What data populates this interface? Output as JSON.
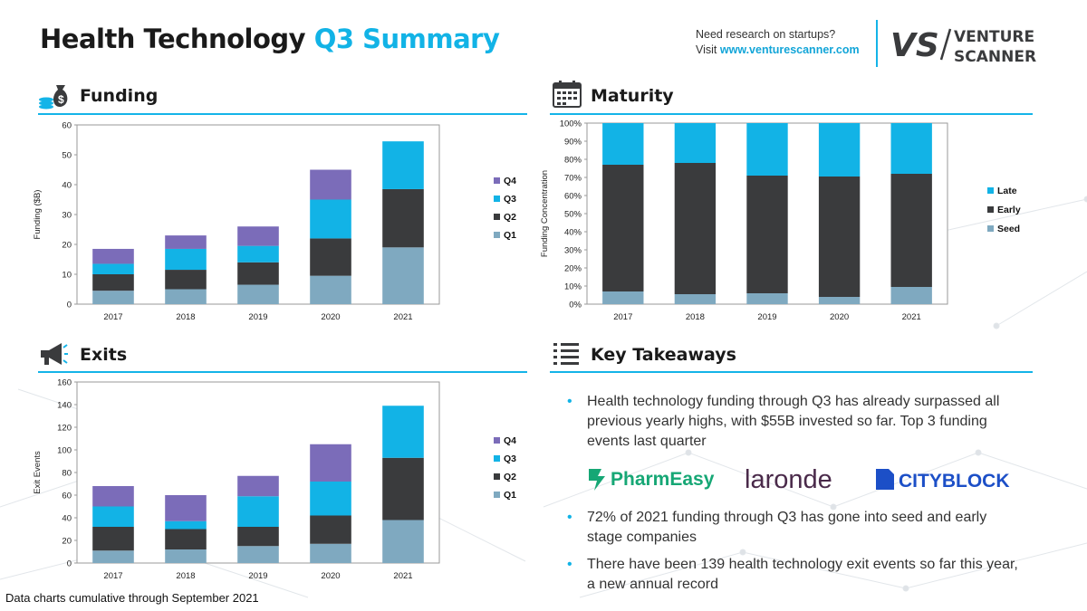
{
  "header": {
    "title_part1": "Health Technology",
    "title_part2": "Q3 Summary",
    "research_line1": "Need research on startups?",
    "research_visit": "Visit ",
    "research_url": "www.venturescanner.com",
    "logo_mark": "VS",
    "logo_word1": "VENTURE",
    "logo_word2": "SCANNER"
  },
  "sections": {
    "funding": "Funding",
    "maturity": "Maturity",
    "exits": "Exits",
    "takeaways": "Key Takeaways"
  },
  "takeaways": {
    "items": [
      "Health technology funding through Q3 has already surpassed all previous yearly highs, with $55B invested so far. Top 3 funding events last quarter",
      "72% of 2021 funding through Q3 has gone into seed and early stage companies",
      "There have been 139 health technology exit events so far this year, a new annual record"
    ],
    "logos": [
      "PharmEasy",
      "laronde",
      "CITYBLOCK"
    ]
  },
  "footer": "Data charts cumulative through September 2021",
  "colors": {
    "accent": "#14b4e8",
    "q1": "#7fa9c0",
    "q2": "#3a3b3d",
    "q3": "#12b3e6",
    "q4": "#7b6cb9",
    "seed": "#7fa9c0",
    "early": "#3a3b3d",
    "late": "#12b3e6"
  },
  "icons": [
    "money-bag-icon",
    "calendar-icon",
    "megaphone-icon",
    "list-icon"
  ],
  "chart_data": [
    {
      "id": "funding",
      "type": "bar",
      "stacked": true,
      "categories": [
        "2017",
        "2018",
        "2019",
        "2020",
        "2021"
      ],
      "series": [
        {
          "name": "Q1",
          "values": [
            4.5,
            5,
            6.5,
            9.5,
            19
          ]
        },
        {
          "name": "Q2",
          "values": [
            5.5,
            6.5,
            7.5,
            12.5,
            19.5
          ]
        },
        {
          "name": "Q3",
          "values": [
            3.5,
            7,
            5.5,
            13,
            16
          ]
        },
        {
          "name": "Q4",
          "values": [
            5,
            4.5,
            6.5,
            10,
            0
          ]
        }
      ],
      "xlabel": "",
      "ylabel": "Funding ($B)",
      "ylim": [
        0,
        60
      ],
      "yticks": [
        "0",
        "10",
        "20",
        "30",
        "40",
        "50",
        "60"
      ],
      "legend": "right"
    },
    {
      "id": "maturity",
      "type": "bar",
      "stacked": true,
      "categories": [
        "2017",
        "2018",
        "2019",
        "2020",
        "2021"
      ],
      "series": [
        {
          "name": "Seed",
          "values": [
            7,
            5.5,
            6,
            4,
            9.5
          ]
        },
        {
          "name": "Early",
          "values": [
            70,
            72.5,
            65,
            66.5,
            62.5
          ]
        },
        {
          "name": "Late",
          "values": [
            23,
            22,
            29,
            29.5,
            28
          ]
        }
      ],
      "xlabel": "",
      "ylabel": "Funding Concentration",
      "ylim": [
        0,
        100
      ],
      "yticks": [
        "0%",
        "10%",
        "20%",
        "30%",
        "40%",
        "50%",
        "60%",
        "70%",
        "80%",
        "90%",
        "100%"
      ],
      "legend": "right"
    },
    {
      "id": "exits",
      "type": "bar",
      "stacked": true,
      "categories": [
        "2017",
        "2018",
        "2019",
        "2020",
        "2021"
      ],
      "series": [
        {
          "name": "Q1",
          "values": [
            11,
            12,
            15,
            17,
            38
          ]
        },
        {
          "name": "Q2",
          "values": [
            21,
            18,
            17,
            25,
            55
          ]
        },
        {
          "name": "Q3",
          "values": [
            18,
            7,
            27,
            30,
            46
          ]
        },
        {
          "name": "Q4",
          "values": [
            18,
            23,
            18,
            33,
            0
          ]
        }
      ],
      "xlabel": "",
      "ylabel": "Exit Events",
      "ylim": [
        0,
        160
      ],
      "yticks": [
        "0",
        "20",
        "40",
        "60",
        "80",
        "100",
        "120",
        "140",
        "160"
      ],
      "legend": "right"
    }
  ]
}
